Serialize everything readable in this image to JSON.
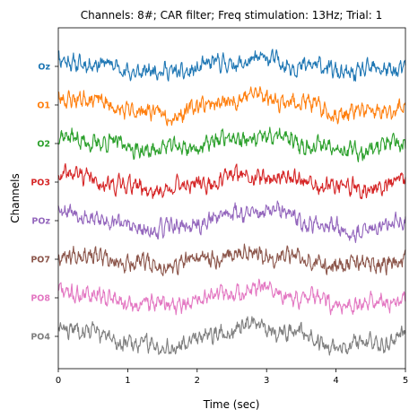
{
  "chart_data": {
    "type": "line",
    "title": "Channels: 8#; CAR filter; Freq stimulation: 13Hz; Trial: 1",
    "xlabel": "Time (sec)",
    "ylabel": "Channels",
    "xlim": [
      0,
      5
    ],
    "x_ticks": [
      "0",
      "1",
      "2",
      "3",
      "4",
      "5"
    ],
    "y_tick_labels": [
      "Oz",
      "O1",
      "O2",
      "PO3",
      "POz",
      "PO7",
      "PO8",
      "PO4"
    ],
    "grid": false,
    "series": [
      {
        "name": "Oz",
        "color": "#1f77b4",
        "seed": 11
      },
      {
        "name": "O1",
        "color": "#ff7f0e",
        "seed": 23
      },
      {
        "name": "O2",
        "color": "#2ca02c",
        "seed": 37
      },
      {
        "name": "PO3",
        "color": "#d62728",
        "seed": 41
      },
      {
        "name": "POz",
        "color": "#9467bd",
        "seed": 53
      },
      {
        "name": "PO7",
        "color": "#8c564b",
        "seed": 67
      },
      {
        "name": "PO8",
        "color": "#e377c2",
        "seed": 71
      },
      {
        "name": "PO4",
        "color": "#7f7f7f",
        "seed": 83
      }
    ]
  }
}
